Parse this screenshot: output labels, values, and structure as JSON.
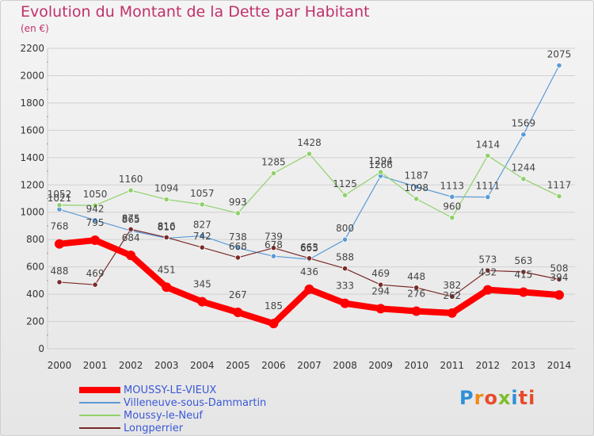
{
  "header": {
    "title": "Evolution du Montant de la Dette par Habitant",
    "unit": "(en €)"
  },
  "logo": {
    "text": "Proxiti"
  },
  "colors": {
    "title": "#c0306a",
    "axis_text": "#333333",
    "grid": "#d0d0d0",
    "legend_text": "#3b59d6"
  },
  "chart_data": {
    "type": "line",
    "title": "Evolution du Montant de la Dette par Habitant",
    "ylabel": "(en €)",
    "xlabel": "",
    "x": [
      "2000",
      "2001",
      "2002",
      "2003",
      "2004",
      "2005",
      "2006",
      "2007",
      "2008",
      "2009",
      "2010",
      "2011",
      "2012",
      "2013",
      "2014"
    ],
    "ylim": [
      0,
      2200
    ],
    "yticks": [
      0,
      200,
      400,
      600,
      800,
      1000,
      1200,
      1400,
      1600,
      1800,
      2000,
      2200
    ],
    "grid": true,
    "legend_position": "bottom-left",
    "series": [
      {
        "name": "MOUSSY-LE-VIEUX",
        "color": "#ff0000",
        "values": [
          768,
          795,
          684,
          451,
          345,
          267,
          185,
          436,
          333,
          294,
          276,
          262,
          432,
          415,
          394
        ]
      },
      {
        "name": "Villeneuve-sous-Dammartin",
        "color": "#5b9bd5",
        "values": [
          1021,
          942,
          865,
          810,
          827,
          738,
          678,
          655,
          800,
          1266,
          1187,
          1113,
          1111,
          1569,
          2075
        ]
      },
      {
        "name": "Moussy-le-Neuf",
        "color": "#8fd16a",
        "values": [
          1052,
          1050,
          1160,
          1094,
          1057,
          993,
          1285,
          1428,
          1125,
          1294,
          1098,
          960,
          1414,
          1244,
          1117
        ]
      },
      {
        "name": "Longperrier",
        "color": "#7a2a2a",
        "values": [
          488,
          469,
          875,
          816,
          742,
          668,
          739,
          663,
          588,
          469,
          448,
          382,
          573,
          563,
          508
        ]
      }
    ]
  }
}
